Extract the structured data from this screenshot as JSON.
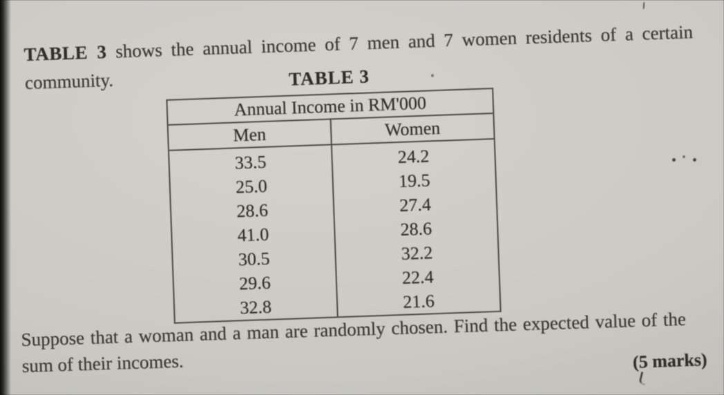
{
  "document": {
    "intro": {
      "line1_bold": "TABLE 3",
      "line1_rest": " shows the annual income of 7 men and 7 women residents of a certain",
      "line2": "community."
    },
    "table": {
      "title": "TABLE 3",
      "header": "Annual Income in RM'000",
      "columns": [
        "Men",
        "Women"
      ],
      "rows": [
        [
          "33.5",
          "24.2"
        ],
        [
          "25.0",
          "19.5"
        ],
        [
          "28.6",
          "27.4"
        ],
        [
          "41.0",
          "28.6"
        ],
        [
          "30.5",
          "32.2"
        ],
        [
          "29.6",
          "22.4"
        ],
        [
          "32.8",
          "21.6"
        ]
      ]
    },
    "question": {
      "line1": "Suppose that a woman and a man are randomly chosen. Find the expected value of the",
      "line2": "sum of their incomes.",
      "marks": "(5 marks)"
    }
  },
  "colors": {
    "paper": "#cac9c4",
    "ink": "#38352e",
    "table_border": "#4c4840",
    "photo_edge": "#0a0a0a"
  }
}
